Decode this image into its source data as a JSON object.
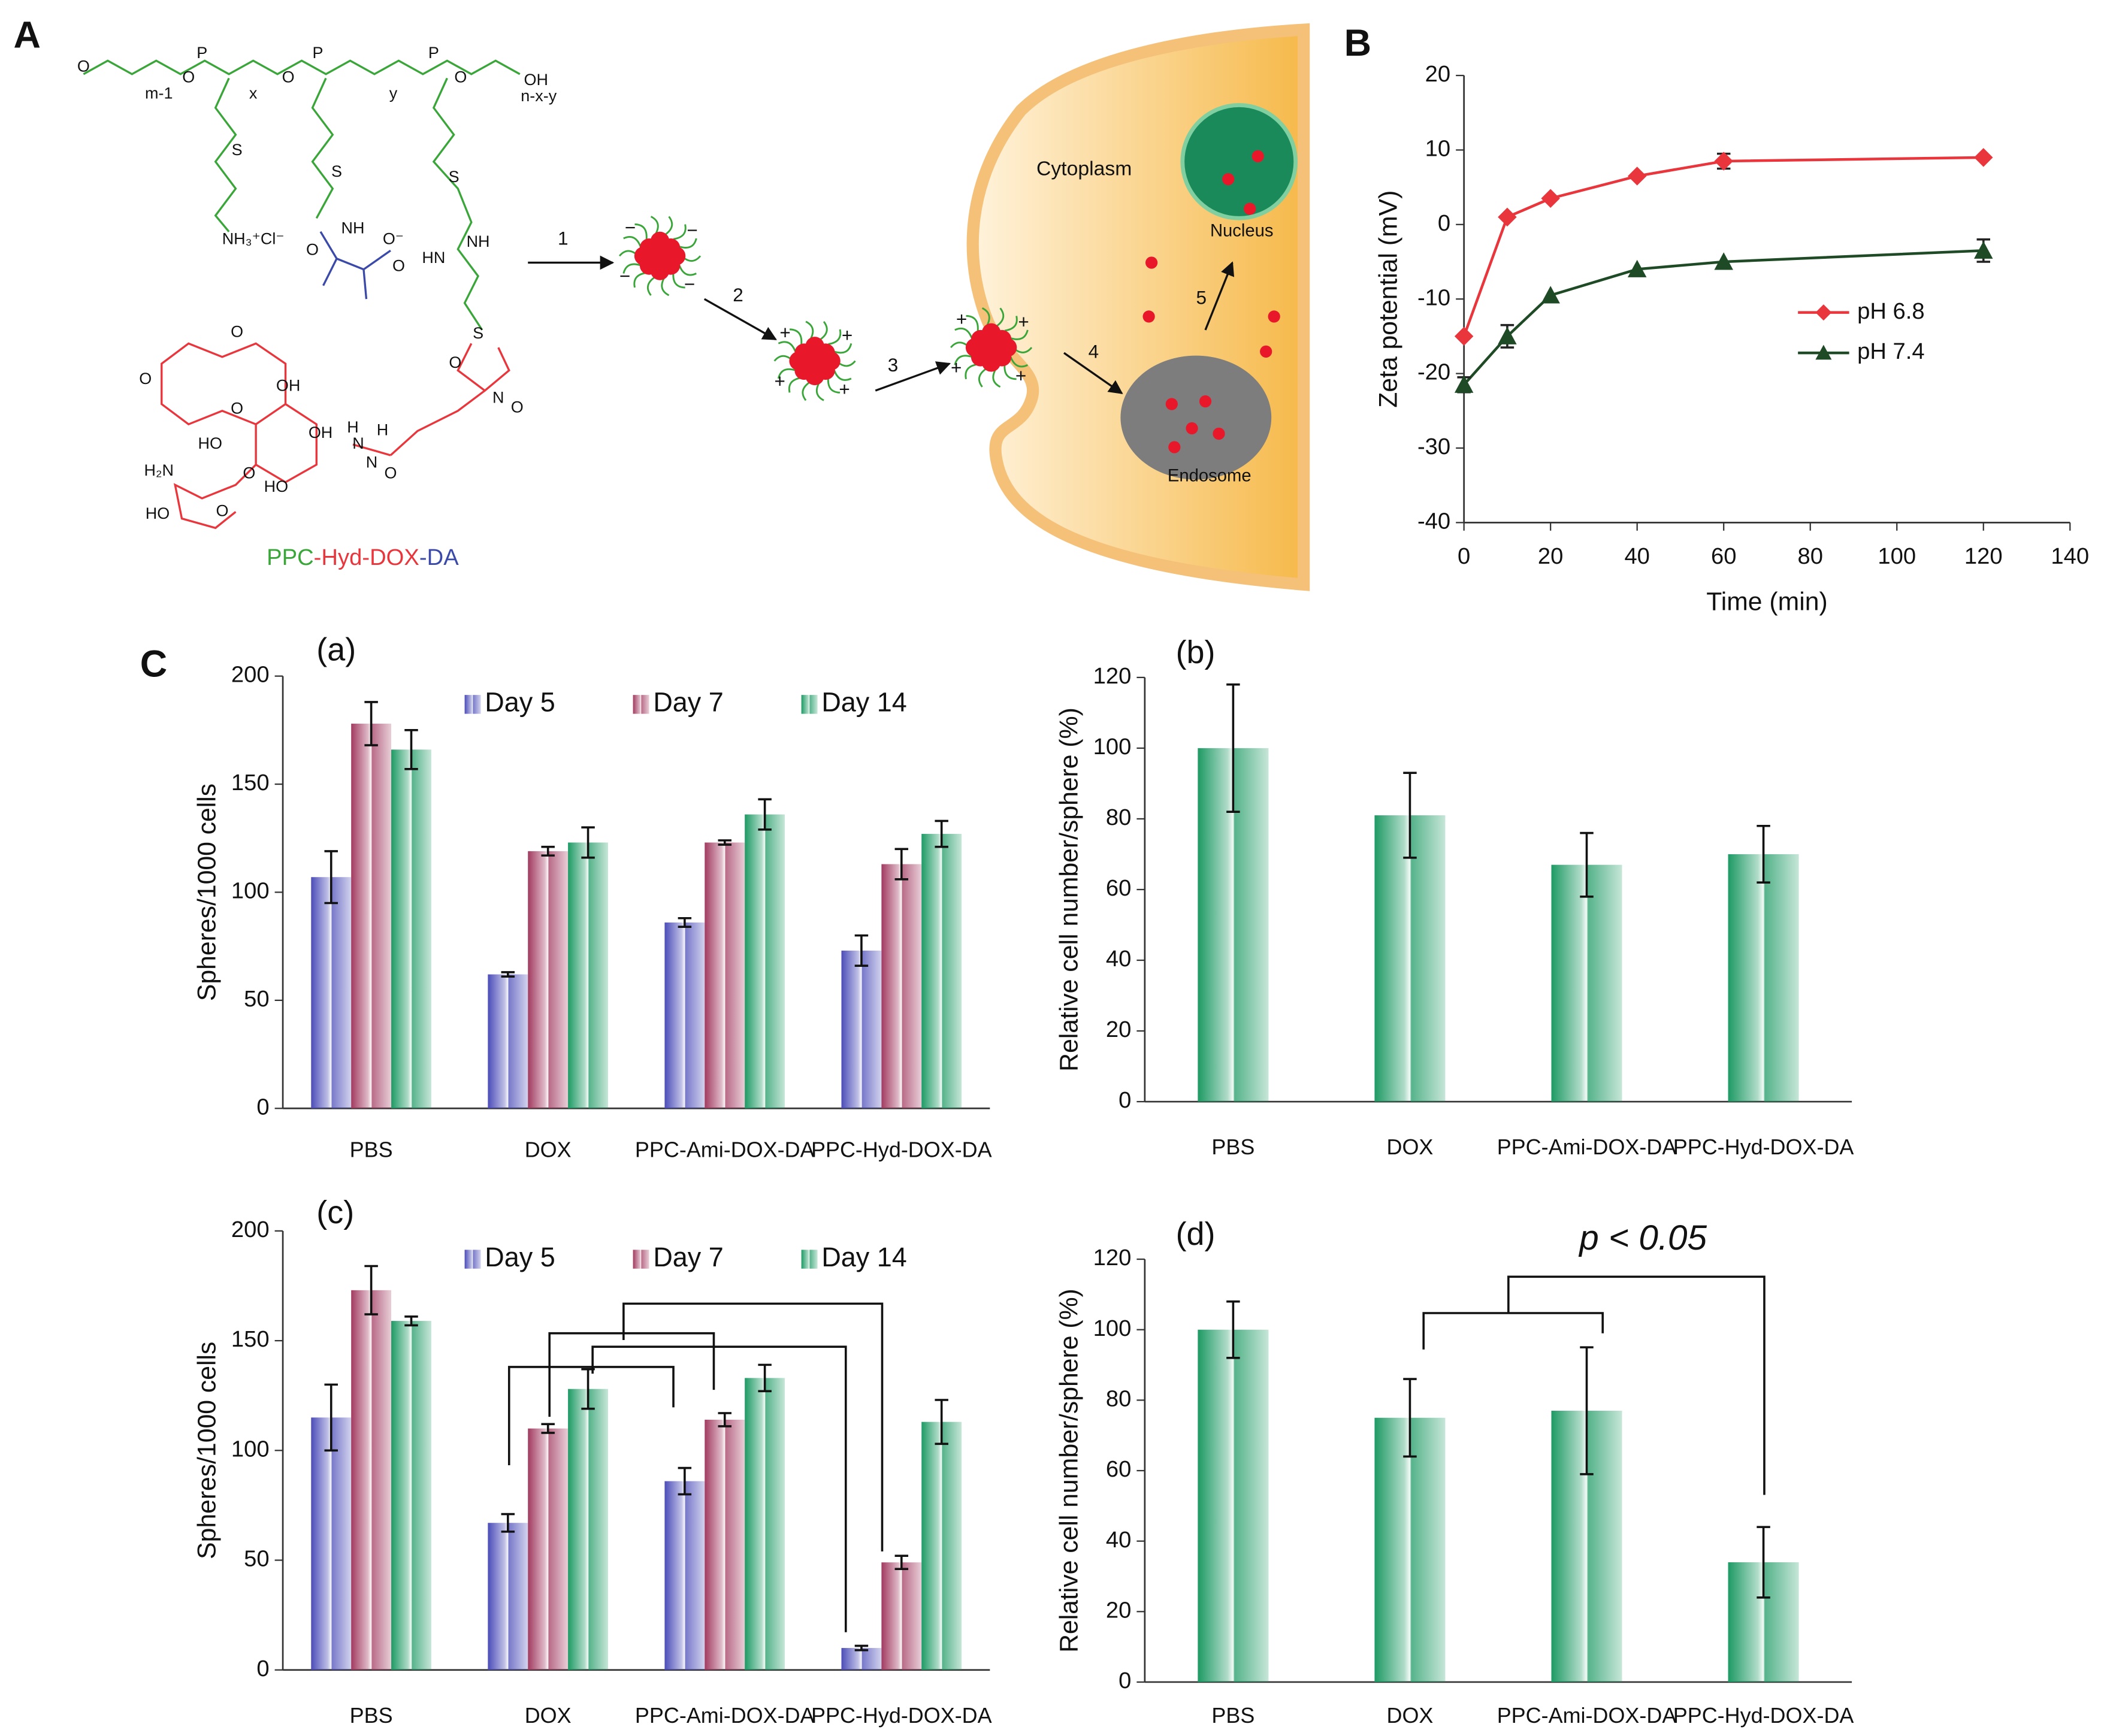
{
  "panels": {
    "A": "A",
    "B": "B",
    "C": "C",
    "sub": [
      "(a)",
      "(b)",
      "(c)",
      "(d)"
    ]
  },
  "diagram": {
    "cytoplasm": "Cytoplasm",
    "nucleus": "Nucleus",
    "endosome": "Endosome",
    "steps": [
      "1",
      "2",
      "3",
      "4",
      "5"
    ],
    "name": [
      "PPC",
      "-",
      "Hyd",
      "-",
      "DOX",
      "-",
      "DA"
    ],
    "neg": "−",
    "pos": "+",
    "structure": [
      "O",
      "m-1",
      "P",
      "O",
      "x",
      "O",
      "P",
      "y",
      "P",
      "O",
      "n-x-y",
      "OH",
      "S",
      "S",
      "S",
      "NH₃⁺Cl⁻",
      "NH",
      "O",
      "O⁻",
      "O",
      "HN",
      "NH",
      "S",
      "O",
      "N",
      "O",
      "O",
      "O",
      "OH",
      "O",
      "HO",
      "OH",
      "H",
      "N",
      "H",
      "N",
      "O",
      "H₂N",
      "HO",
      "O",
      "O",
      "HO"
    ]
  },
  "chart_data": [
    {
      "type": "line",
      "xlabel": "Time (min)",
      "ylabel": "Zeta potential (mV)",
      "x": [
        0,
        10,
        20,
        40,
        60,
        120
      ],
      "xlim": [
        0,
        140
      ],
      "xticks": [
        0,
        20,
        40,
        60,
        80,
        100,
        120,
        140
      ],
      "ylim": [
        -40,
        20
      ],
      "yticks": [
        -40,
        -30,
        -20,
        -10,
        0,
        10,
        20
      ],
      "legend": "right",
      "series": [
        {
          "name": "pH 6.8",
          "color": "#e8363c",
          "marker": "diamond",
          "values": [
            -15,
            1,
            3.5,
            6.5,
            8.5,
            9
          ],
          "errors": [
            0,
            0,
            0,
            0,
            1,
            0
          ]
        },
        {
          "name": "pH 7.4",
          "color": "#1f4a26",
          "marker": "triangle",
          "values": [
            -21.5,
            -15,
            -9.5,
            -6,
            -5,
            -3.5
          ],
          "errors": [
            1,
            1.5,
            0,
            0,
            0,
            1.5
          ]
        }
      ]
    },
    {
      "type": "bar",
      "ylabel": "Spheres/1000 cells",
      "categories": [
        "PBS",
        "DOX",
        "PPC-Ami-DOX-DA",
        "PPC-Hyd-DOX-DA"
      ],
      "ylim": [
        0,
        200
      ],
      "yticks": [
        0,
        50,
        100,
        150,
        200
      ],
      "legend": "top",
      "series": [
        {
          "name": "Day 5",
          "color": "#4b4cb8",
          "values": [
            107,
            62,
            86,
            73
          ],
          "errors": [
            12,
            1,
            2,
            7
          ]
        },
        {
          "name": "Day 7",
          "color": "#a23a60",
          "values": [
            178,
            119,
            123,
            113
          ],
          "errors": [
            10,
            2,
            1,
            7
          ]
        },
        {
          "name": "Day 14",
          "color": "#1d9a64",
          "values": [
            166,
            123,
            136,
            127
          ],
          "errors": [
            9,
            7,
            7,
            6
          ]
        }
      ]
    },
    {
      "type": "bar",
      "ylabel": "Relative cell number/sphere (%)",
      "categories": [
        "PBS",
        "DOX",
        "PPC-Ami-DOX-DA",
        "PPC-Hyd-DOX-DA"
      ],
      "ylim": [
        0,
        120
      ],
      "yticks": [
        0,
        20,
        40,
        60,
        80,
        100,
        120
      ],
      "color": "#1d9a64",
      "values": [
        100,
        81,
        67,
        70
      ],
      "errors": [
        18,
        12,
        9,
        8
      ]
    },
    {
      "type": "bar",
      "ylabel": "Spheres/1000 cells",
      "categories": [
        "PBS",
        "DOX",
        "PPC-Ami-DOX-DA",
        "PPC-Hyd-DOX-DA"
      ],
      "ylim": [
        0,
        200
      ],
      "yticks": [
        0,
        50,
        100,
        150,
        200
      ],
      "legend": "top",
      "series": [
        {
          "name": "Day 5",
          "color": "#4b4cb8",
          "values": [
            115,
            67,
            86,
            10
          ],
          "errors": [
            15,
            4,
            6,
            1
          ]
        },
        {
          "name": "Day 7",
          "color": "#a23a60",
          "values": [
            173,
            110,
            114,
            49
          ],
          "errors": [
            11,
            2,
            3,
            3
          ]
        },
        {
          "name": "Day 14",
          "color": "#1d9a64",
          "values": [
            159,
            128,
            133,
            113
          ],
          "errors": [
            2,
            9,
            6,
            10
          ]
        }
      ]
    },
    {
      "type": "bar",
      "ylabel": "Relative cell number/sphere (%)",
      "categories": [
        "PBS",
        "DOX",
        "PPC-Ami-DOX-DA",
        "PPC-Hyd-DOX-DA"
      ],
      "ylim": [
        0,
        120
      ],
      "yticks": [
        0,
        20,
        40,
        60,
        80,
        100,
        120
      ],
      "color": "#1d9a64",
      "values": [
        100,
        75,
        77,
        34
      ],
      "errors": [
        8,
        11,
        18,
        10
      ],
      "annotation": "p < 0.05"
    }
  ]
}
